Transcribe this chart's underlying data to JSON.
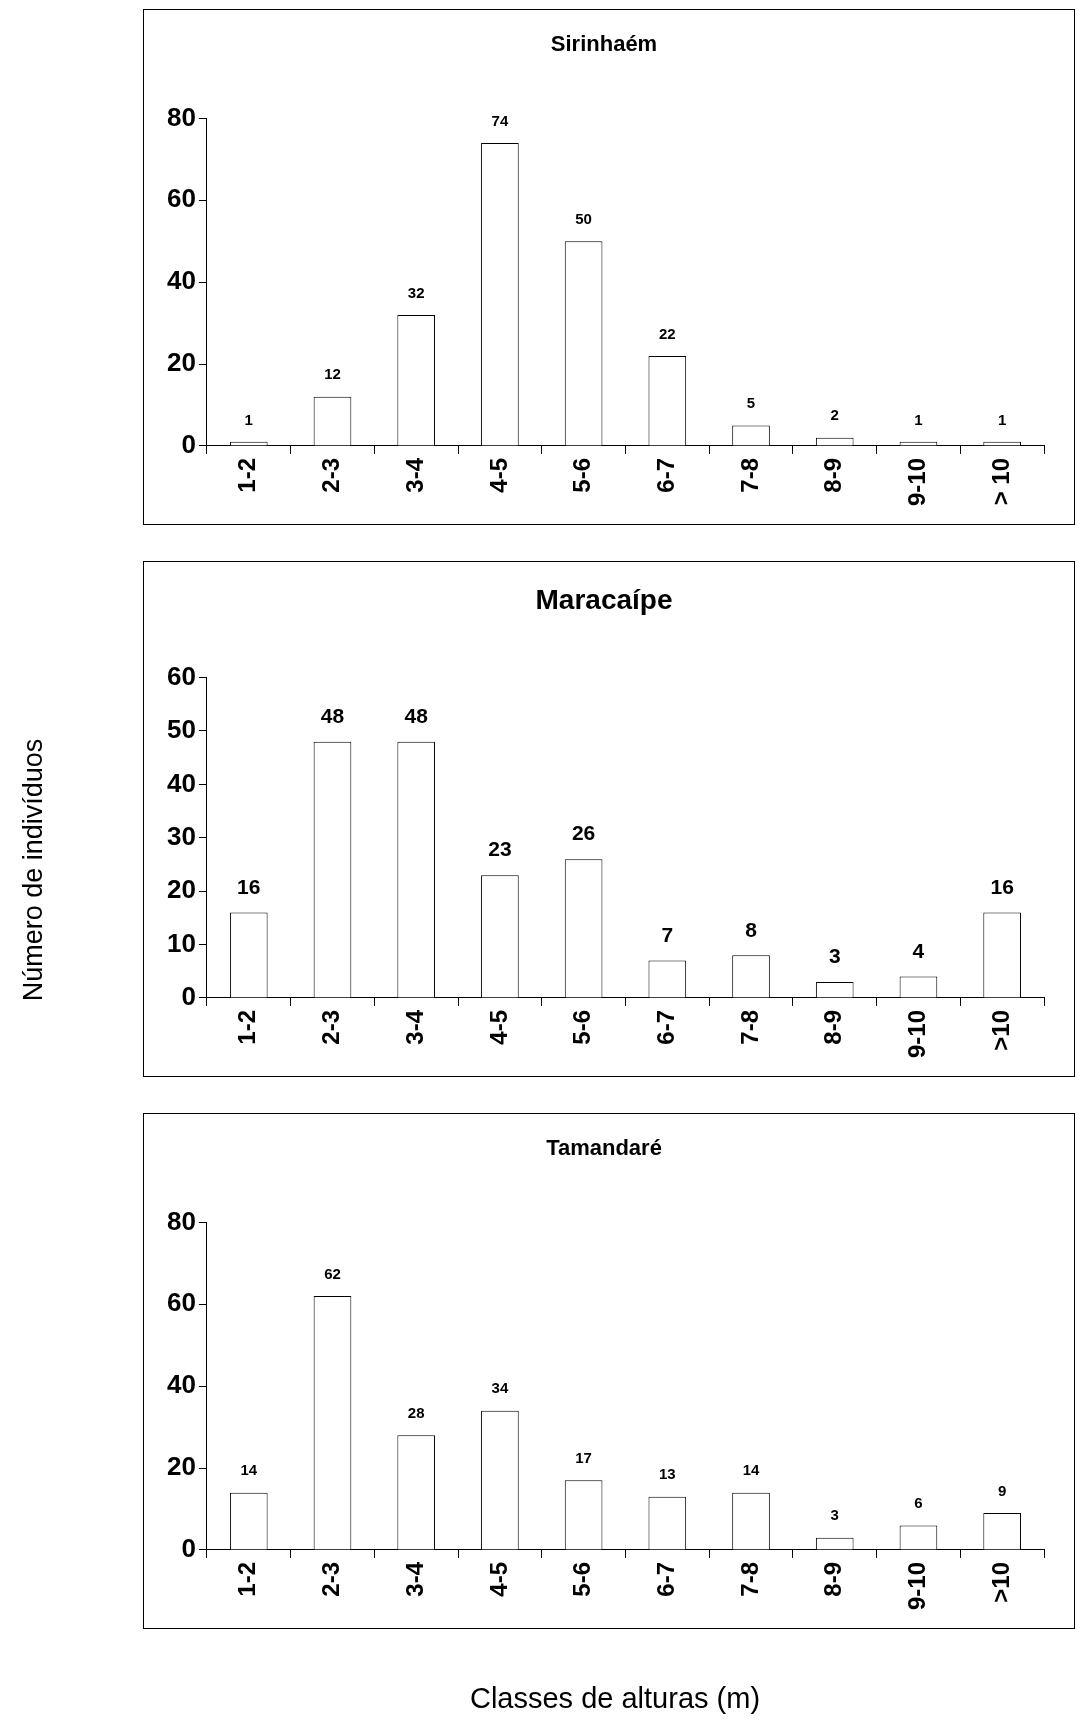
{
  "chart_data": [
    {
      "type": "bar",
      "title": "Sirinhaém",
      "categories": [
        "1-2",
        "2-3",
        "3-4",
        "4-5",
        "5-6",
        "6-7",
        "7-8",
        "8-9",
        "9-10",
        "> 10"
      ],
      "values": [
        1,
        12,
        32,
        74,
        50,
        22,
        5,
        2,
        1,
        1
      ],
      "color": "#ffffff",
      "ylim": [
        0,
        80
      ],
      "yticks": [
        0,
        20,
        40,
        60,
        80
      ],
      "data_labels": true,
      "grid": false,
      "legend": false
    },
    {
      "type": "bar",
      "title": "Maracaípe",
      "ylabel": "Número de indivíduos",
      "categories": [
        "1-2",
        "2-3",
        "3-4",
        "4-5",
        "5-6",
        "6-7",
        "7-8",
        "8-9",
        "9-10",
        ">10"
      ],
      "values": [
        16,
        48,
        48,
        23,
        26,
        7,
        8,
        3,
        4,
        16
      ],
      "color": "#ffffff",
      "ylim": [
        0,
        60
      ],
      "yticks": [
        0,
        10,
        20,
        30,
        40,
        50,
        60
      ],
      "data_labels": true,
      "grid": false,
      "legend": false
    },
    {
      "type": "bar",
      "title": "Tamandaré",
      "xlabel": "Classes de alturas (m)",
      "categories": [
        "1-2",
        "2-3",
        "3-4",
        "4-5",
        "5-6",
        "6-7",
        "7-8",
        "8-9",
        "9-10",
        ">10"
      ],
      "values": [
        14,
        62,
        28,
        34,
        17,
        13,
        14,
        3,
        6,
        9
      ],
      "color": "#ffffff",
      "ylim": [
        0,
        80
      ],
      "yticks": [
        0,
        20,
        40,
        60,
        80
      ],
      "data_labels": true,
      "grid": false,
      "legend": false
    }
  ]
}
